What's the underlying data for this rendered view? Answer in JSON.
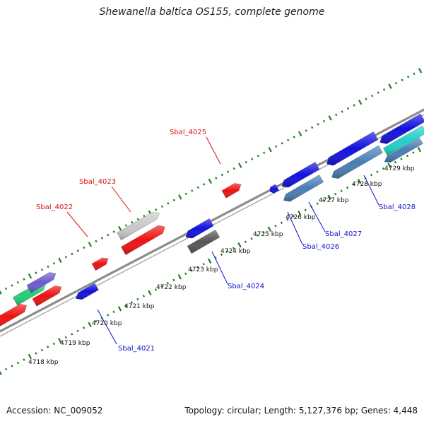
{
  "title": "Shewanella baltica OS155, complete genome",
  "footer": {
    "accession": "Accession: NC_009052",
    "stats": "Topology: circular; Length: 5,127,376 bp; Genes: 4,448"
  },
  "colors": {
    "backbone": "#8c8c8c",
    "tick": "#1e7d1e",
    "forward_red": "#ee1111",
    "reverse_blue": "#1111dd",
    "steel_blue": "#4a7db5",
    "gray": "#555555",
    "light_gray": "#c8c8c8",
    "purple": "#6a5acd",
    "green": "#22cc77",
    "cyan": "#20d0c8",
    "label_red": "#dd1111",
    "label_blue": "#1111cc"
  },
  "ruler_labels": [
    {
      "text": "4718 kbp"
    },
    {
      "text": "4719 kbp"
    },
    {
      "text": "4720 kbp"
    },
    {
      "text": "4721 kbp"
    },
    {
      "text": "4722 kbp"
    },
    {
      "text": "4723 kbp"
    },
    {
      "text": "4724 kbp"
    },
    {
      "text": "4725 kbp"
    },
    {
      "text": "4726 kbp"
    },
    {
      "text": "4727 kbp"
    },
    {
      "text": "4728 kbp"
    },
    {
      "text": "4729 kbp"
    }
  ],
  "gene_labels": [
    {
      "text": "Sbal_4022",
      "color": "label_red"
    },
    {
      "text": "Sbal_4023",
      "color": "label_red"
    },
    {
      "text": "Sbal_4025",
      "color": "label_red"
    },
    {
      "text": "Sbal_4021",
      "color": "label_blue"
    },
    {
      "text": "Sbal_4024",
      "color": "label_blue"
    },
    {
      "text": "Sbal_4026",
      "color": "label_blue"
    },
    {
      "text": "Sbal_4027",
      "color": "label_blue"
    },
    {
      "text": "Sbal_4028",
      "color": "label_blue"
    }
  ]
}
